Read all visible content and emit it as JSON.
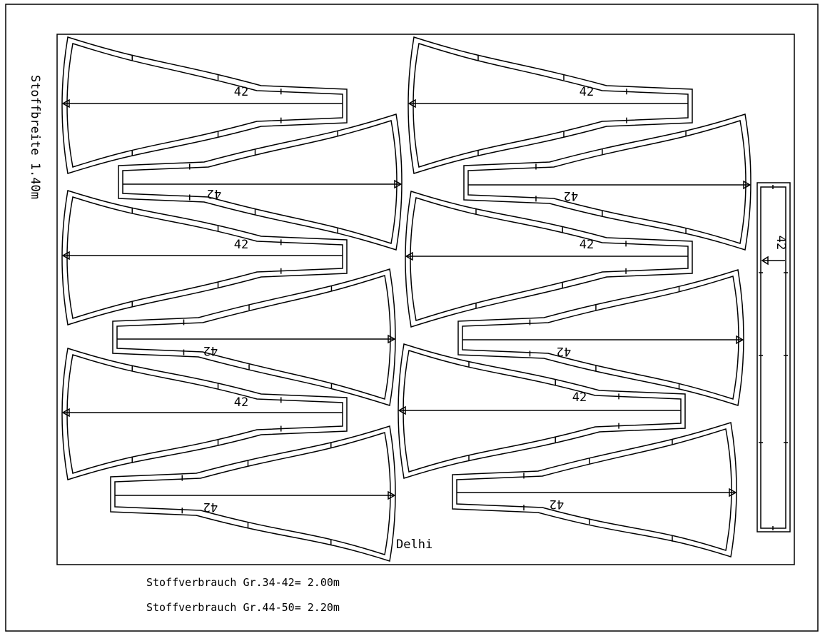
{
  "fabric_width_label": "Stoffbreite 1.40m",
  "model_name": "Delhi",
  "consumption": [
    "Stoffverbrauch Gr.34-42= 2.00m",
    "Stoffverbrauch Gr.44-50= 2.20m"
  ],
  "piece_size_label": "42",
  "pieces": [
    {
      "type": "panel",
      "orientation": "wide-left",
      "size": "42"
    },
    {
      "type": "panel",
      "orientation": "wide-right",
      "size": "42"
    },
    {
      "type": "panel",
      "orientation": "wide-left",
      "size": "42"
    },
    {
      "type": "panel",
      "orientation": "wide-right",
      "size": "42"
    },
    {
      "type": "panel",
      "orientation": "wide-left",
      "size": "42"
    },
    {
      "type": "panel",
      "orientation": "wide-right",
      "size": "42"
    },
    {
      "type": "panel",
      "orientation": "wide-left",
      "size": "42"
    },
    {
      "type": "panel",
      "orientation": "wide-right",
      "size": "42"
    },
    {
      "type": "panel",
      "orientation": "wide-left",
      "size": "42"
    },
    {
      "type": "panel",
      "orientation": "wide-right",
      "size": "42"
    },
    {
      "type": "panel",
      "orientation": "wide-left",
      "size": "42"
    },
    {
      "type": "panel",
      "orientation": "wide-right",
      "size": "42"
    },
    {
      "type": "waistband",
      "orientation": "vertical",
      "size": "42"
    }
  ],
  "colors": {
    "line": "#000000",
    "background": "#ffffff"
  }
}
